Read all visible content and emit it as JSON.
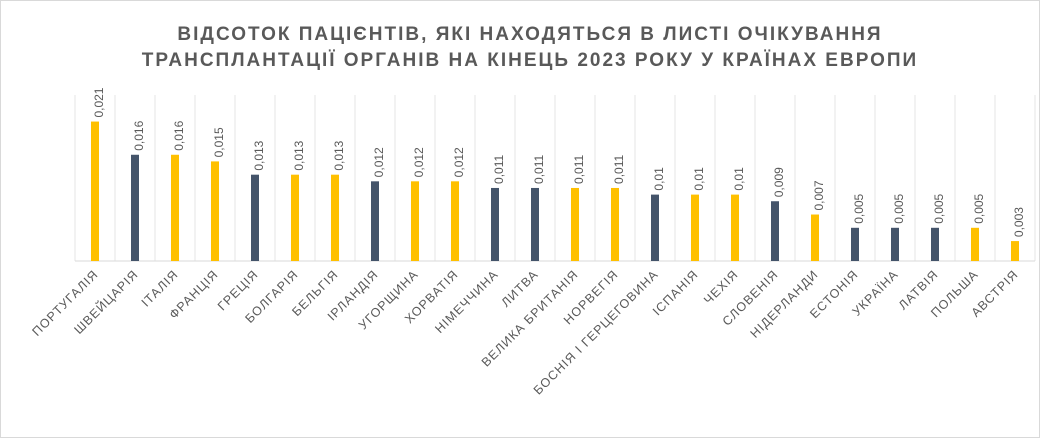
{
  "chart_data": {
    "type": "bar",
    "title": [
      "ВІДСОТОК ПАЦІЄНТІВ, ЯКІ НАХОДЯТЬСЯ В ЛИСТІ ОЧІКУВАННЯ",
      "ТРАНСПЛАНТАЦІЇ ОРГАНІВ НА КІНЕЦЬ 2023 РОКУ У КРАЇНАХ ЕВРОПИ"
    ],
    "categories": [
      "ПОРТУГАЛІЯ",
      "ШВЕЙЦАРІЯ",
      "ІТАЛІЯ",
      "ФРАНЦІЯ",
      "ГРЕЦІЯ",
      "БОЛГАРІЯ",
      "БЕЛЬГІЯ",
      "ІРЛАНДІЯ",
      "УГОРЩИНА",
      "ХОРВАТІЯ",
      "НІМЕЧЧИНА",
      "ЛИТВА",
      "ВЕЛИКА БРИТАНІЯ",
      "НОРВЕГІЯ",
      "БОСНІЯ І ГЕРЦЕГОВИНА",
      "ІСПАНІЯ",
      "ЧЕХІЯ",
      "СЛОВЕНІЯ",
      "НІДЕРЛАНДИ",
      "ЕСТОНІЯ",
      "УКРАЇНА",
      "ЛАТВІЯ",
      "ПОЛЬША",
      "АВСТРІЯ"
    ],
    "values": [
      0.021,
      0.016,
      0.016,
      0.015,
      0.013,
      0.013,
      0.013,
      0.012,
      0.012,
      0.012,
      0.011,
      0.011,
      0.011,
      0.011,
      0.01,
      0.01,
      0.01,
      0.009,
      0.007,
      0.005,
      0.005,
      0.005,
      0.005,
      0.003
    ],
    "value_labels": [
      "0,021",
      "0,016",
      "0,016",
      "0,015",
      "0,013",
      "0,013",
      "0,013",
      "0,012",
      "0,012",
      "0,012",
      "0,011",
      "0,011",
      "0,011",
      "0,011",
      "0,01",
      "0,01",
      "0,01",
      "0,009",
      "0,007",
      "0,005",
      "0,005",
      "0,005",
      "0,005",
      "0,003"
    ],
    "colors": [
      "#FFC000",
      "#44546A",
      "#FFC000",
      "#FFC000",
      "#44546A",
      "#FFC000",
      "#FFC000",
      "#44546A",
      "#FFC000",
      "#FFC000",
      "#44546A",
      "#44546A",
      "#FFC000",
      "#FFC000",
      "#44546A",
      "#FFC000",
      "#FFC000",
      "#44546A",
      "#FFC000",
      "#44546A",
      "#44546A",
      "#44546A",
      "#FFC000",
      "#FFC000"
    ],
    "ylim": [
      0,
      0.025
    ],
    "grid": true
  }
}
